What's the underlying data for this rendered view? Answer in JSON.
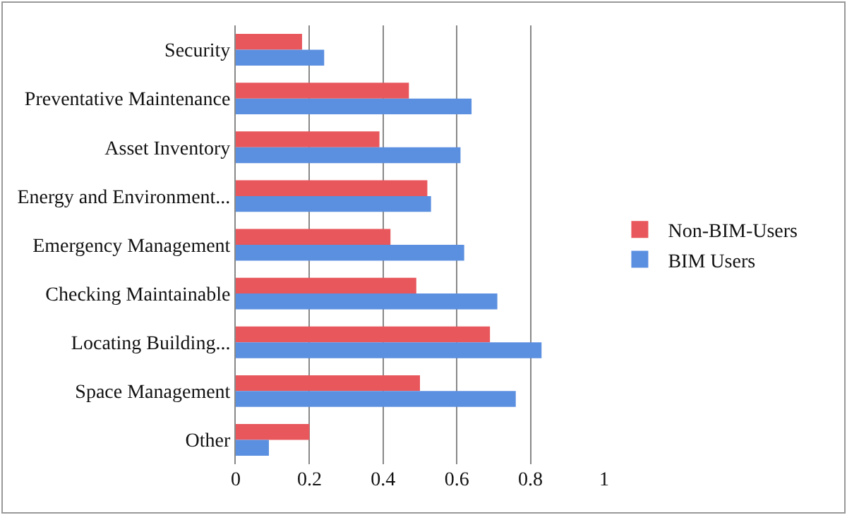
{
  "chart_data": {
    "type": "bar",
    "orientation": "horizontal",
    "categories": [
      "Security",
      "Preventative Maintenance",
      "Asset Inventory",
      "Energy and Environment...",
      "Emergency Management",
      "Checking Maintainable",
      "Locating Building...",
      "Space Management",
      "Other"
    ],
    "series": [
      {
        "name": "Non-BIM-Users",
        "color": "#e8575c",
        "values": [
          0.18,
          0.47,
          0.39,
          0.52,
          0.42,
          0.49,
          0.69,
          0.5,
          0.2
        ]
      },
      {
        "name": "BIM Users",
        "color": "#5b8fe0",
        "values": [
          0.24,
          0.64,
          0.61,
          0.53,
          0.62,
          0.71,
          0.83,
          0.76,
          0.09
        ]
      }
    ],
    "xlim": [
      0,
      1
    ],
    "xticks": [
      0,
      {
        "value": 0.2,
        "label": "0.2"
      },
      {
        "value": 0.4,
        "label": "0.4"
      },
      {
        "value": 0.6,
        "label": "0.6"
      },
      {
        "value": 0.8,
        "label": "0.8"
      },
      1
    ],
    "grid": "x",
    "legend": "right"
  }
}
